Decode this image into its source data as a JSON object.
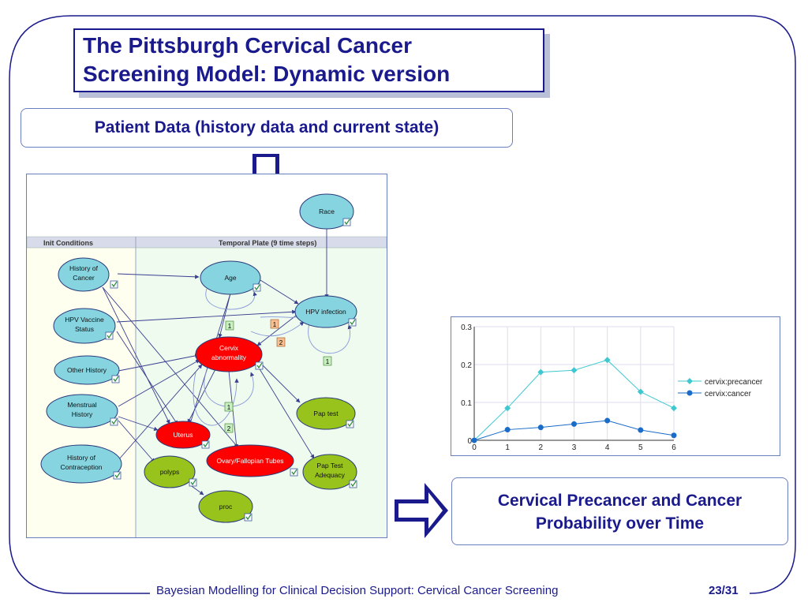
{
  "slide": {
    "title_line1": "The Pittsburgh Cervical Cancer",
    "title_line2": "Screening Model: Dynamic version",
    "patient_data_label": "Patient Data (history data and current state)",
    "result_line1": "Cervical Precancer and Cancer",
    "result_line2": "Probability over Time",
    "footer": "Bayesian Modelling for Clinical Decision Support: Cervical Cancer Screening",
    "page": "23/31"
  },
  "network": {
    "init_header": "Init Conditions",
    "plate_header": "Temporal Plate (9 time steps)",
    "nodes": {
      "race": "Race",
      "history_cancer": [
        "History of",
        "Cancer"
      ],
      "hpv_vaccine": [
        "HPV Vaccine",
        "Status"
      ],
      "other_history": "Other History",
      "menstrual": [
        "Menstrual",
        "History"
      ],
      "contraception": [
        "History of",
        "Contraception"
      ],
      "age": "Age",
      "hpv_infection": "HPV infection",
      "cervix": [
        "Cervix",
        "abnormality"
      ],
      "uterus": "Uterus",
      "ovary": "Ovary/Fallopian Tubes",
      "polyps": "polyps",
      "proc": "proc",
      "pap_test": "Pap test",
      "pap_adequacy": [
        "Pap Test",
        "Adequacy"
      ]
    },
    "lag_labels": [
      "1",
      "1",
      "2",
      "1",
      "1",
      "2"
    ],
    "colors": {
      "history_node": "#86d4e0",
      "target_node": "#ff0000",
      "observed_node": "#97c31c",
      "plate_bg": "#eefbee",
      "init_bg": "#fffff0"
    }
  },
  "chart_data": {
    "type": "line",
    "x": [
      0,
      1,
      2,
      3,
      4,
      5,
      6
    ],
    "series": [
      {
        "name": "cervix:precancer",
        "color": "#40c8d0",
        "values": [
          0.0,
          0.085,
          0.18,
          0.185,
          0.212,
          0.128,
          0.085
        ]
      },
      {
        "name": "cervix:cancer",
        "color": "#1a6cc8",
        "values": [
          0.0,
          0.028,
          0.034,
          0.043,
          0.052,
          0.027,
          0.013
        ]
      }
    ],
    "xticks": [
      "0",
      "1",
      "2",
      "3",
      "4",
      "5",
      "6"
    ],
    "yticks": [
      "0",
      "0.1",
      "0.2",
      "0.3"
    ],
    "ylim": [
      0,
      0.3
    ],
    "xlim": [
      0,
      6
    ],
    "grid": true,
    "legend_position": "right"
  }
}
